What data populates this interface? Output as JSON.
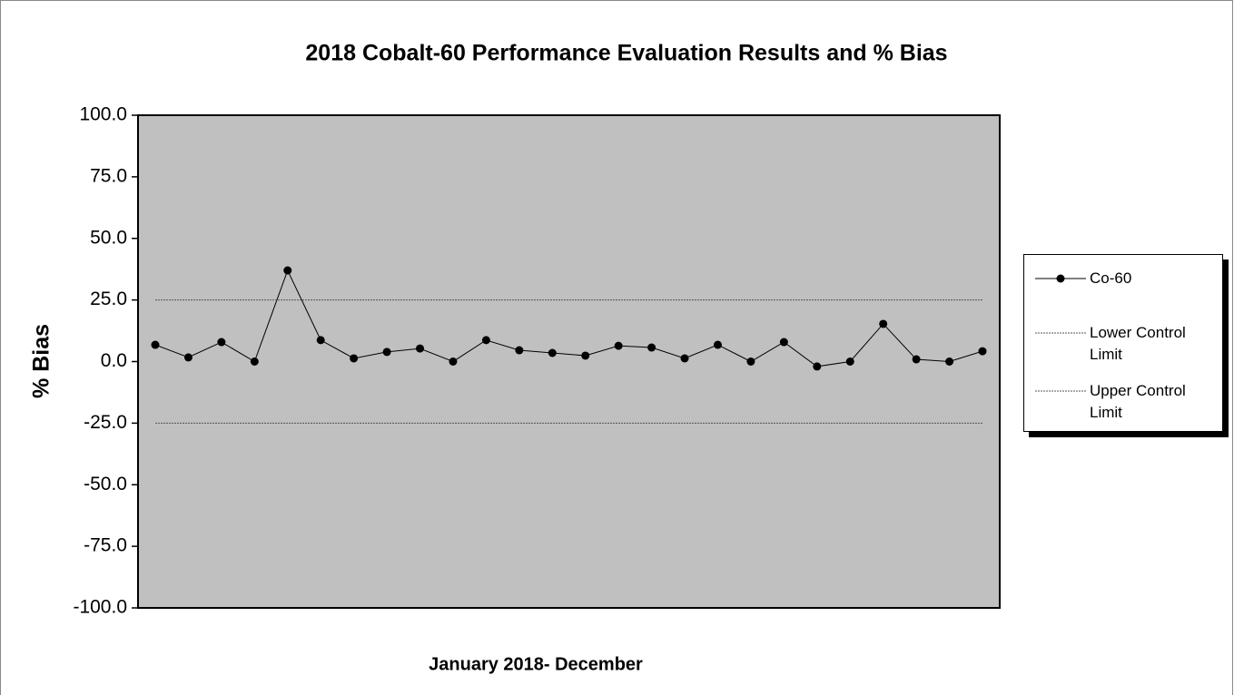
{
  "chart_data": {
    "type": "line",
    "title": "2018 Cobalt-60 Performance Evaluation Results and % Bias",
    "y_label": "% Bias",
    "x_label": "January 2018- December",
    "categories": [
      null,
      null,
      null,
      null,
      null,
      null,
      null,
      null,
      null,
      null,
      null,
      null,
      null,
      null,
      null,
      null,
      null,
      null,
      null,
      null,
      null,
      null,
      null,
      null,
      null,
      null
    ],
    "series": [
      {
        "name": "Co-60",
        "color": "#000000",
        "marker": "circle",
        "values": [
          6.8,
          1.7,
          7.9,
          0,
          37,
          8.7,
          1.3,
          3.9,
          5.3,
          0,
          8.7,
          4.6,
          3.5,
          2.4,
          6.4,
          5.7,
          1.3,
          6.8,
          0,
          7.9,
          -2,
          0,
          15.3,
          0.9,
          0,
          4.2
        ]
      },
      {
        "name": "Lower Control Limit",
        "color": "#555555",
        "dashed": true,
        "values": [
          -25,
          -25,
          -25,
          -25,
          -25,
          -25,
          -25,
          -25,
          -25,
          -25,
          -25,
          -25,
          -25,
          -25,
          -25,
          -25,
          -25,
          -25,
          -25,
          -25,
          -25,
          -25,
          -25,
          -25,
          -25,
          -25
        ]
      },
      {
        "name": "Upper Control Limit",
        "color": "#555555",
        "dashed": true,
        "values": [
          25,
          25,
          25,
          25,
          25,
          25,
          25,
          25,
          25,
          25,
          25,
          25,
          25,
          25,
          25,
          25,
          25,
          25,
          25,
          25,
          25,
          25,
          25,
          25,
          25,
          25
        ]
      }
    ],
    "ylim": [
      -100,
      100
    ],
    "yticks": [
      {
        "value": -100,
        "label": "-100.0"
      },
      {
        "value": -75,
        "label": "-75.0"
      },
      {
        "value": -50,
        "label": "-50.0"
      },
      {
        "value": -25,
        "label": "-25.0"
      },
      {
        "value": 0,
        "label": "0.0"
      },
      {
        "value": 25,
        "label": "25.0"
      },
      {
        "value": 50,
        "label": "50.0"
      },
      {
        "value": 75,
        "label": "75.0"
      },
      {
        "value": 100,
        "label": "100.0"
      }
    ],
    "plot_background": "#c0c0c0",
    "legend": "right"
  }
}
